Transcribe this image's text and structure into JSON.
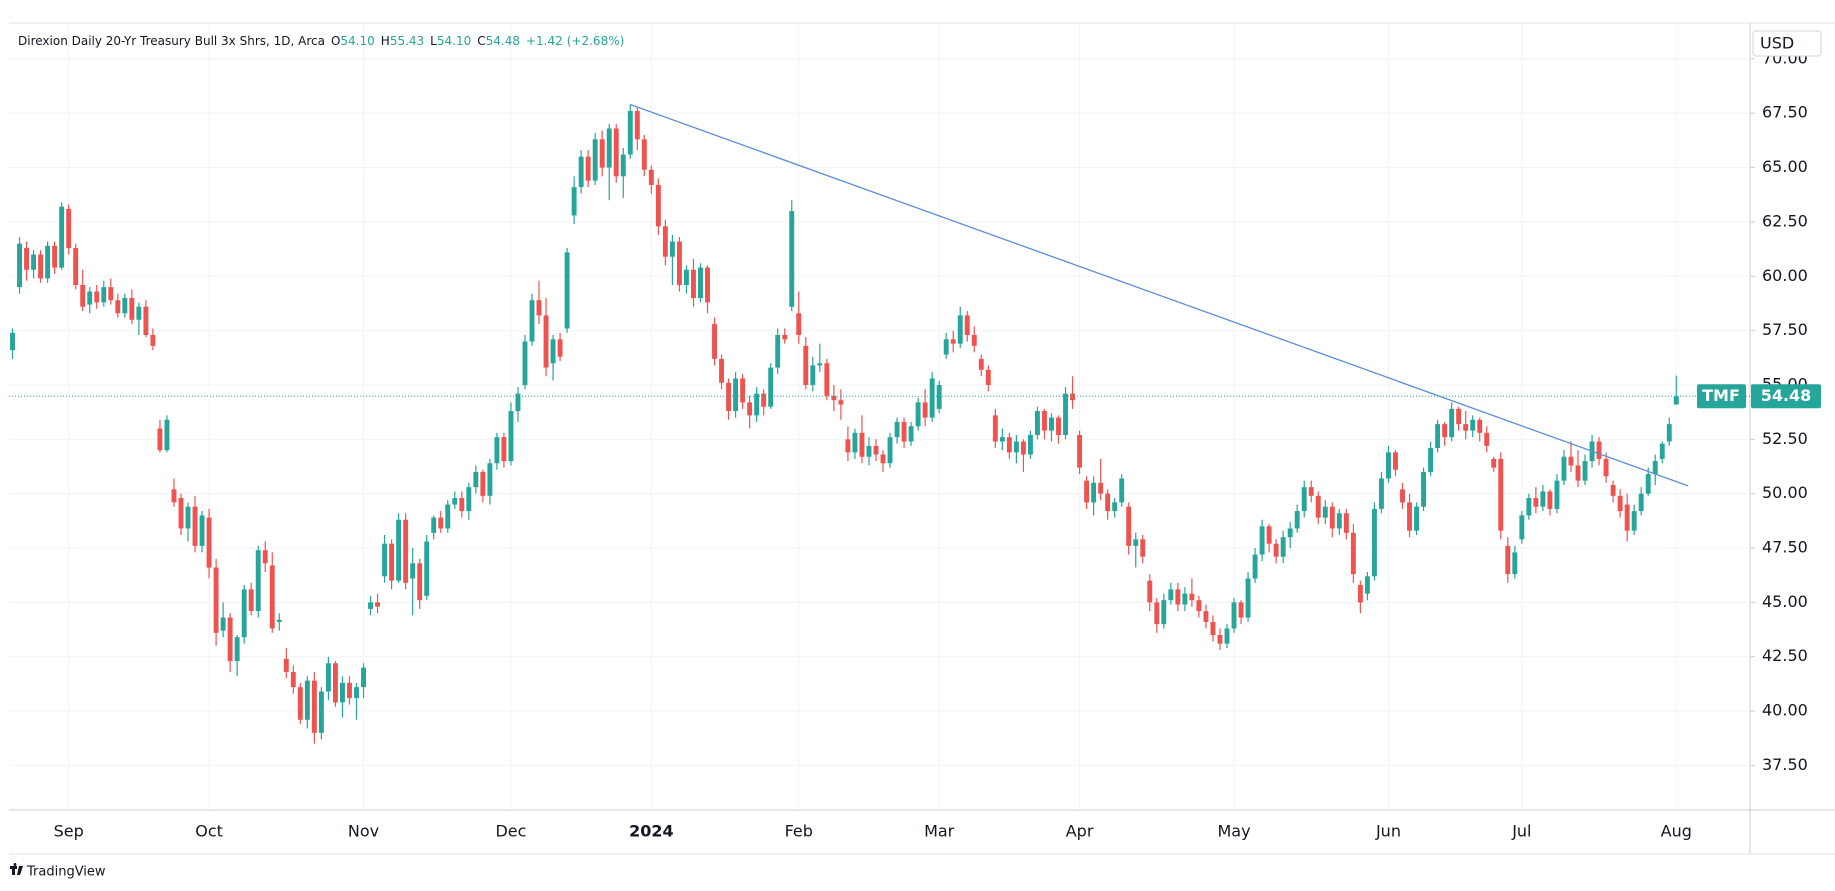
{
  "chart_data": {
    "type": "candlestick",
    "title": "Direxion Daily 20-Yr Treasury Bull 3x Shrs, 1D, Arca",
    "ohlc_keys": [
      "O",
      "H",
      "L",
      "C"
    ],
    "ohlc": [
      {
        "value": 54.1,
        "label": "54.10"
      },
      55.43,
      {
        "value": 54.1,
        "label": "54.10"
      },
      54.48
    ],
    "change": {
      "value": 1.42,
      "label": "+1.42"
    },
    "change_pct": {
      "value": 2.68,
      "label": "(+2.68%)"
    },
    "currency": "USD",
    "symbol": "TMF",
    "last_price": 54.48,
    "branding": "TradingView",
    "up_color": "#26a69a",
    "down_color": "#ef5350",
    "trendline_color": "#5b8fd6",
    "grid": true,
    "xlim": [
      -0.5,
      247.5
    ],
    "xticks": [
      {
        "value": 8,
        "label": "Sep"
      },
      {
        "value": 28,
        "label": "Oct"
      },
      {
        "value": 50,
        "label": "Nov"
      },
      {
        "value": 71,
        "label": "Dec"
      },
      {
        "value": 91,
        "label": "2024"
      },
      {
        "value": 112,
        "label": "Feb"
      },
      {
        "value": 132,
        "label": "Mar"
      },
      {
        "value": 152,
        "label": "Apr"
      },
      {
        "value": 174,
        "label": "May"
      },
      {
        "value": 196,
        "label": "Jun"
      },
      {
        "value": 215,
        "label": "Jul"
      },
      {
        "value": 237,
        "label": "Aug"
      }
    ],
    "ylim": [
      35.45,
      71.65
    ],
    "yticks": [
      {
        "value": 37.5,
        "label": "37.50"
      },
      {
        "value": 40,
        "label": "40.00"
      },
      {
        "value": 42.5,
        "label": "42.50"
      },
      {
        "value": 45,
        "label": "45.00"
      },
      {
        "value": 47.5,
        "label": "47.50"
      },
      {
        "value": 50,
        "label": "50.00"
      },
      {
        "value": 52.5,
        "label": "52.50"
      },
      {
        "value": 55,
        "label": "55.00"
      },
      {
        "value": 57.5,
        "label": "57.50"
      },
      {
        "value": 60,
        "label": "60.00"
      },
      {
        "value": 62.5,
        "label": "62.50"
      },
      {
        "value": 65,
        "label": "65.00"
      },
      {
        "value": 67.5,
        "label": "67.50"
      },
      {
        "value": 70,
        "label": "70.00"
      }
    ],
    "trendline": {
      "x": [
        88,
        238.7
      ],
      "y": [
        67.9,
        50.36
      ]
    },
    "candles": [
      [
        56.6,
        57.6,
        56.2,
        57.4
      ],
      [
        59.5,
        61.8,
        59.2,
        61.5
      ],
      [
        61.3,
        61.6,
        59.8,
        60.3
      ],
      [
        60.3,
        61.2,
        59.9,
        61.0
      ],
      [
        61.0,
        61.2,
        59.7,
        59.9
      ],
      [
        59.9,
        61.6,
        59.7,
        61.4
      ],
      [
        61.4,
        61.6,
        60.1,
        60.4
      ],
      [
        60.4,
        63.4,
        60.3,
        63.2
      ],
      [
        63.1,
        63.3,
        61.0,
        61.3
      ],
      [
        61.3,
        61.5,
        59.4,
        59.6
      ],
      [
        59.6,
        60.3,
        58.4,
        58.6
      ],
      [
        58.7,
        59.5,
        58.3,
        59.3
      ],
      [
        59.3,
        59.6,
        58.5,
        58.8
      ],
      [
        58.8,
        59.8,
        58.6,
        59.5
      ],
      [
        59.5,
        59.9,
        58.7,
        58.9
      ],
      [
        58.9,
        59.2,
        58.1,
        58.3
      ],
      [
        58.3,
        59.2,
        58.1,
        59.0
      ],
      [
        59.0,
        59.4,
        57.8,
        58.0
      ],
      [
        58.0,
        58.8,
        57.3,
        58.6
      ],
      [
        58.6,
        58.9,
        57.2,
        57.3
      ],
      [
        57.3,
        57.6,
        56.6,
        56.8
      ],
      [
        53.0,
        53.4,
        51.9,
        52.0
      ],
      [
        52.0,
        53.6,
        51.9,
        53.4
      ],
      [
        50.2,
        50.7,
        49.4,
        49.6
      ],
      [
        49.8,
        50.0,
        48.1,
        48.4
      ],
      [
        48.4,
        49.6,
        47.8,
        49.4
      ],
      [
        49.4,
        49.9,
        47.3,
        47.6
      ],
      [
        47.6,
        49.2,
        47.3,
        49.0
      ],
      [
        48.9,
        49.3,
        46.1,
        46.6
      ],
      [
        46.6,
        47.0,
        43.0,
        43.6
      ],
      [
        43.7,
        45.0,
        43.4,
        44.3
      ],
      [
        44.3,
        44.5,
        41.8,
        42.3
      ],
      [
        42.3,
        43.5,
        41.6,
        43.4
      ],
      [
        43.4,
        45.8,
        43.1,
        45.6
      ],
      [
        45.6,
        45.9,
        44.4,
        44.6
      ],
      [
        44.6,
        47.6,
        44.3,
        47.4
      ],
      [
        47.4,
        47.8,
        46.4,
        46.8
      ],
      [
        46.7,
        47.3,
        43.6,
        43.8
      ],
      [
        44.1,
        44.5,
        43.7,
        44.2
      ],
      [
        42.4,
        42.9,
        41.5,
        41.8
      ],
      [
        41.8,
        42.1,
        40.8,
        41.1
      ],
      [
        41.1,
        41.3,
        39.4,
        39.6
      ],
      [
        39.6,
        41.6,
        39.2,
        41.4
      ],
      [
        41.4,
        41.8,
        38.5,
        39.0
      ],
      [
        39.0,
        41.1,
        38.7,
        40.9
      ],
      [
        40.9,
        42.5,
        40.5,
        42.2
      ],
      [
        42.2,
        42.3,
        40.2,
        40.4
      ],
      [
        40.4,
        41.6,
        39.7,
        41.3
      ],
      [
        41.3,
        41.6,
        40.3,
        40.6
      ],
      [
        40.6,
        41.3,
        39.6,
        41.1
      ],
      [
        41.1,
        42.2,
        40.6,
        42.0
      ],
      [
        44.7,
        45.3,
        44.4,
        45.0
      ],
      [
        45.0,
        45.4,
        44.5,
        44.8
      ],
      [
        46.2,
        48.1,
        45.9,
        47.7
      ],
      [
        47.7,
        47.9,
        45.6,
        46.0
      ],
      [
        46.0,
        49.1,
        45.9,
        48.8
      ],
      [
        48.8,
        49.1,
        45.6,
        45.9
      ],
      [
        46.1,
        47.5,
        44.4,
        46.8
      ],
      [
        46.8,
        47.0,
        44.7,
        45.1
      ],
      [
        45.3,
        48.1,
        45.1,
        47.8
      ],
      [
        48.2,
        49.0,
        47.9,
        48.9
      ],
      [
        48.9,
        49.2,
        48.2,
        48.4
      ],
      [
        48.4,
        49.7,
        48.2,
        49.5
      ],
      [
        49.5,
        50.1,
        49.3,
        49.8
      ],
      [
        49.8,
        50.1,
        48.9,
        49.2
      ],
      [
        49.2,
        50.5,
        48.8,
        50.3
      ],
      [
        50.3,
        51.3,
        50.0,
        51.0
      ],
      [
        51.0,
        51.1,
        49.6,
        49.9
      ],
      [
        49.9,
        51.6,
        49.5,
        51.4
      ],
      [
        51.4,
        52.8,
        51.1,
        52.6
      ],
      [
        52.6,
        52.8,
        51.2,
        51.5
      ],
      [
        51.5,
        54.2,
        51.3,
        53.8
      ],
      [
        53.8,
        54.9,
        53.3,
        54.6
      ],
      [
        55.0,
        57.3,
        54.8,
        57.0
      ],
      [
        57.0,
        59.2,
        56.8,
        58.9
      ],
      [
        58.9,
        59.8,
        57.8,
        58.2
      ],
      [
        58.2,
        59.0,
        55.4,
        55.8
      ],
      [
        56.0,
        57.3,
        55.2,
        57.1
      ],
      [
        57.1,
        57.4,
        56.1,
        56.3
      ],
      [
        57.6,
        61.3,
        57.4,
        61.1
      ],
      [
        62.8,
        64.6,
        62.4,
        64.1
      ],
      [
        64.1,
        65.8,
        63.8,
        65.5
      ],
      [
        65.5,
        65.8,
        64.1,
        64.4
      ],
      [
        64.4,
        66.6,
        64.2,
        66.3
      ],
      [
        66.3,
        66.7,
        64.6,
        65.0
      ],
      [
        65.0,
        67.0,
        63.5,
        66.8
      ],
      [
        66.8,
        67.0,
        64.3,
        64.6
      ],
      [
        64.6,
        65.9,
        63.6,
        65.6
      ],
      [
        65.6,
        67.9,
        65.4,
        67.6
      ],
      [
        67.6,
        67.8,
        65.8,
        66.3
      ],
      [
        66.3,
        66.5,
        64.6,
        64.9
      ],
      [
        64.9,
        65.1,
        63.8,
        64.2
      ],
      [
        64.2,
        64.5,
        61.9,
        62.3
      ],
      [
        62.3,
        62.6,
        60.5,
        60.9
      ],
      [
        60.9,
        61.9,
        59.6,
        61.6
      ],
      [
        61.6,
        61.8,
        59.3,
        59.6
      ],
      [
        59.6,
        60.5,
        59.2,
        60.3
      ],
      [
        60.3,
        60.8,
        58.6,
        59.0
      ],
      [
        59.0,
        60.6,
        58.8,
        60.4
      ],
      [
        60.4,
        60.5,
        58.3,
        58.8
      ],
      [
        57.8,
        58.1,
        55.9,
        56.2
      ],
      [
        56.2,
        56.4,
        54.8,
        55.1
      ],
      [
        55.1,
        55.3,
        53.4,
        53.8
      ],
      [
        53.8,
        55.6,
        53.5,
        55.3
      ],
      [
        55.3,
        55.5,
        53.9,
        54.2
      ],
      [
        54.2,
        54.5,
        53.0,
        53.6
      ],
      [
        53.6,
        54.9,
        53.3,
        54.6
      ],
      [
        54.6,
        54.8,
        53.6,
        54.0
      ],
      [
        54.0,
        56.0,
        53.9,
        55.8
      ],
      [
        55.8,
        57.6,
        55.5,
        57.3
      ],
      [
        57.3,
        57.6,
        56.9,
        57.1
      ],
      [
        58.6,
        63.5,
        58.4,
        63.0
      ],
      [
        58.3,
        59.3,
        56.9,
        57.3
      ],
      [
        56.8,
        57.2,
        54.8,
        55.0
      ],
      [
        55.0,
        56.3,
        54.7,
        55.9
      ],
      [
        55.9,
        56.9,
        55.6,
        56.0
      ],
      [
        56.0,
        56.2,
        54.3,
        54.5
      ],
      [
        54.5,
        55.0,
        53.8,
        54.3
      ],
      [
        54.3,
        54.8,
        53.4,
        54.1
      ],
      [
        52.5,
        53.1,
        51.5,
        51.9
      ],
      [
        51.9,
        53.0,
        51.6,
        52.8
      ],
      [
        52.8,
        53.6,
        51.4,
        51.7
      ],
      [
        51.7,
        52.6,
        51.3,
        52.2
      ],
      [
        52.2,
        52.5,
        51.5,
        51.8
      ],
      [
        51.8,
        52.0,
        51.0,
        51.4
      ],
      [
        51.4,
        52.8,
        51.2,
        52.6
      ],
      [
        52.6,
        53.5,
        52.3,
        53.3
      ],
      [
        53.3,
        53.5,
        52.1,
        52.4
      ],
      [
        52.4,
        53.3,
        52.2,
        53.1
      ],
      [
        53.1,
        54.4,
        52.9,
        54.2
      ],
      [
        54.2,
        54.8,
        53.1,
        53.5
      ],
      [
        53.5,
        55.6,
        53.3,
        55.3
      ],
      [
        53.9,
        55.2,
        53.7,
        55.0
      ],
      [
        56.4,
        57.4,
        56.2,
        57.1
      ],
      [
        57.1,
        57.5,
        56.5,
        56.9
      ],
      [
        56.9,
        58.6,
        56.7,
        58.2
      ],
      [
        58.2,
        58.4,
        57.0,
        57.3
      ],
      [
        57.3,
        57.7,
        56.5,
        56.8
      ],
      [
        56.2,
        56.4,
        55.4,
        55.7
      ],
      [
        55.7,
        55.9,
        54.7,
        55.0
      ],
      [
        53.6,
        53.9,
        52.1,
        52.4
      ],
      [
        52.4,
        53.0,
        52.0,
        52.6
      ],
      [
        52.6,
        52.8,
        51.6,
        51.9
      ],
      [
        51.9,
        52.7,
        51.4,
        52.4
      ],
      [
        52.4,
        52.5,
        51.0,
        51.8
      ],
      [
        51.8,
        52.9,
        51.6,
        52.7
      ],
      [
        52.7,
        54.0,
        52.5,
        53.8
      ],
      [
        53.8,
        53.9,
        52.5,
        52.9
      ],
      [
        52.9,
        53.7,
        52.4,
        53.5
      ],
      [
        53.5,
        53.6,
        52.3,
        52.7
      ],
      [
        52.7,
        54.9,
        52.5,
        54.6
      ],
      [
        54.6,
        55.4,
        53.9,
        54.3
      ],
      [
        52.7,
        52.9,
        50.9,
        51.2
      ],
      [
        50.6,
        50.8,
        49.3,
        49.6
      ],
      [
        49.6,
        50.8,
        49.0,
        50.5
      ],
      [
        50.5,
        51.6,
        49.7,
        50.0
      ],
      [
        50.0,
        50.2,
        48.8,
        49.2
      ],
      [
        49.2,
        49.8,
        48.9,
        49.6
      ],
      [
        49.6,
        50.9,
        49.4,
        50.7
      ],
      [
        49.4,
        49.6,
        47.2,
        47.6
      ],
      [
        47.6,
        48.2,
        46.6,
        47.9
      ],
      [
        47.9,
        48.1,
        46.8,
        47.1
      ],
      [
        46.0,
        46.3,
        44.6,
        45.0
      ],
      [
        45.0,
        45.2,
        43.6,
        44.0
      ],
      [
        44.0,
        45.4,
        43.8,
        45.1
      ],
      [
        45.1,
        45.9,
        44.9,
        45.6
      ],
      [
        45.6,
        45.9,
        44.6,
        44.9
      ],
      [
        44.9,
        45.7,
        44.6,
        45.4
      ],
      [
        45.4,
        46.1,
        44.8,
        45.1
      ],
      [
        45.1,
        45.3,
        44.3,
        44.6
      ],
      [
        44.6,
        44.9,
        43.8,
        44.1
      ],
      [
        44.1,
        44.4,
        43.2,
        43.5
      ],
      [
        43.5,
        43.8,
        42.8,
        43.1
      ],
      [
        43.1,
        44.0,
        42.9,
        43.8
      ],
      [
        43.8,
        45.2,
        43.6,
        45.0
      ],
      [
        45.0,
        45.1,
        44.0,
        44.3
      ],
      [
        44.3,
        46.4,
        44.1,
        46.1
      ],
      [
        46.1,
        47.5,
        45.9,
        47.2
      ],
      [
        47.2,
        48.8,
        46.9,
        48.5
      ],
      [
        48.5,
        48.6,
        47.3,
        47.7
      ],
      [
        47.7,
        47.9,
        46.8,
        47.1
      ],
      [
        47.1,
        48.3,
        46.8,
        48.0
      ],
      [
        48.0,
        48.7,
        47.5,
        48.4
      ],
      [
        48.4,
        49.5,
        48.2,
        49.2
      ],
      [
        49.2,
        50.6,
        48.9,
        50.3
      ],
      [
        50.3,
        50.6,
        49.6,
        49.9
      ],
      [
        49.9,
        50.1,
        48.6,
        48.9
      ],
      [
        48.9,
        49.7,
        48.6,
        49.4
      ],
      [
        49.4,
        49.6,
        48.0,
        48.4
      ],
      [
        48.4,
        49.3,
        48.1,
        49.1
      ],
      [
        49.1,
        49.3,
        47.9,
        48.2
      ],
      [
        48.2,
        48.6,
        45.9,
        46.3
      ],
      [
        45.8,
        46.0,
        44.5,
        45.0
      ],
      [
        45.4,
        46.4,
        45.1,
        46.2
      ],
      [
        46.2,
        49.6,
        46.0,
        49.3
      ],
      [
        49.3,
        51.0,
        49.1,
        50.7
      ],
      [
        50.7,
        52.2,
        50.5,
        51.9
      ],
      [
        51.9,
        52.0,
        50.8,
        51.1
      ],
      [
        50.2,
        50.5,
        49.3,
        49.6
      ],
      [
        49.6,
        50.0,
        48.0,
        48.3
      ],
      [
        48.3,
        49.6,
        48.1,
        49.4
      ],
      [
        49.4,
        51.2,
        49.2,
        51.0
      ],
      [
        51.0,
        52.4,
        50.8,
        52.1
      ],
      [
        52.1,
        53.4,
        51.9,
        53.2
      ],
      [
        53.2,
        53.3,
        52.2,
        52.6
      ],
      [
        52.6,
        54.2,
        52.4,
        53.9
      ],
      [
        53.9,
        54.0,
        52.9,
        53.2
      ],
      [
        53.2,
        53.8,
        52.5,
        52.9
      ],
      [
        52.9,
        53.6,
        52.6,
        53.4
      ],
      [
        53.4,
        53.5,
        52.4,
        52.8
      ],
      [
        52.8,
        53.1,
        51.9,
        52.2
      ],
      [
        51.6,
        51.7,
        51.0,
        51.2
      ],
      [
        51.6,
        51.9,
        47.9,
        48.3
      ],
      [
        47.6,
        48.0,
        45.9,
        46.3
      ],
      [
        46.3,
        47.6,
        46.1,
        47.3
      ],
      [
        47.9,
        49.2,
        47.7,
        49.0
      ],
      [
        49.0,
        50.0,
        48.8,
        49.8
      ],
      [
        49.8,
        50.3,
        49.1,
        49.4
      ],
      [
        49.4,
        50.4,
        49.2,
        50.1
      ],
      [
        50.1,
        50.2,
        49.0,
        49.3
      ],
      [
        49.3,
        50.9,
        49.1,
        50.6
      ],
      [
        50.6,
        52.0,
        50.4,
        51.7
      ],
      [
        51.7,
        52.4,
        51.0,
        51.3
      ],
      [
        51.3,
        52.0,
        50.3,
        50.6
      ],
      [
        50.6,
        51.8,
        50.4,
        51.5
      ],
      [
        51.5,
        52.7,
        51.2,
        52.4
      ],
      [
        52.4,
        52.6,
        51.3,
        51.6
      ],
      [
        51.6,
        51.9,
        50.5,
        50.8
      ],
      [
        50.4,
        50.6,
        49.6,
        49.9
      ],
      [
        49.9,
        50.2,
        48.9,
        49.2
      ],
      [
        49.5,
        50.0,
        47.8,
        48.3
      ],
      [
        48.3,
        49.5,
        48.1,
        49.2
      ],
      [
        49.2,
        50.3,
        49.0,
        50.0
      ],
      [
        50.0,
        51.2,
        49.9,
        50.9
      ],
      [
        50.9,
        51.8,
        50.4,
        51.5
      ],
      [
        51.6,
        52.4,
        51.4,
        52.3
      ],
      [
        52.4,
        53.5,
        52.2,
        53.2
      ],
      [
        54.1,
        55.43,
        54.1,
        54.48
      ]
    ]
  }
}
